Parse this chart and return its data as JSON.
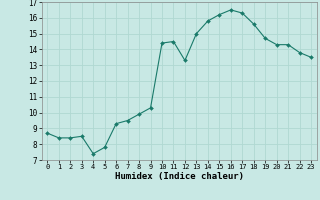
{
  "x": [
    0,
    1,
    2,
    3,
    4,
    5,
    6,
    7,
    8,
    9,
    10,
    11,
    12,
    13,
    14,
    15,
    16,
    17,
    18,
    19,
    20,
    21,
    22,
    23
  ],
  "y": [
    8.7,
    8.4,
    8.4,
    8.5,
    7.4,
    7.8,
    9.3,
    9.5,
    9.9,
    10.3,
    14.4,
    14.5,
    13.3,
    15.0,
    15.8,
    16.2,
    16.5,
    16.3,
    15.6,
    14.7,
    14.3,
    14.3,
    13.8,
    13.5
  ],
  "xlabel": "Humidex (Indice chaleur)",
  "ylim": [
    7,
    17
  ],
  "xlim": [
    -0.5,
    23.5
  ],
  "yticks": [
    7,
    8,
    9,
    10,
    11,
    12,
    13,
    14,
    15,
    16,
    17
  ],
  "xticks": [
    0,
    1,
    2,
    3,
    4,
    5,
    6,
    7,
    8,
    9,
    10,
    11,
    12,
    13,
    14,
    15,
    16,
    17,
    18,
    19,
    20,
    21,
    22,
    23
  ],
  "line_color": "#1a7a6a",
  "marker_color": "#1a7a6a",
  "bg_color": "#c8e8e4",
  "grid_color": "#b0d8d2"
}
